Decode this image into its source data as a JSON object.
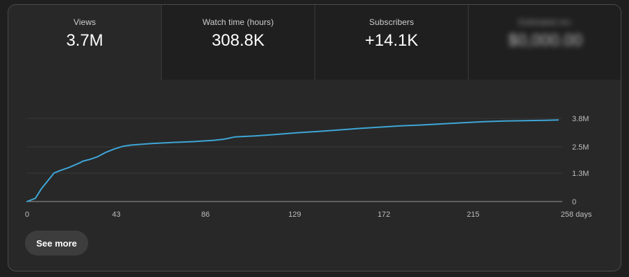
{
  "tabs": [
    {
      "label": "Views",
      "value": "3.7M"
    },
    {
      "label": "Watch time (hours)",
      "value": "308.8K"
    },
    {
      "label": "Subscribers",
      "value": "+14.1K"
    },
    {
      "label": "Estimated rev.",
      "value": "$0,000.00"
    }
  ],
  "see_more_label": "See more",
  "colors": {
    "line": "#3ea6d6",
    "grid": "#3a3a3a",
    "baseline": "#9a9a9a"
  },
  "chart_data": {
    "type": "line",
    "title": "",
    "xlabel": "",
    "ylabel": "",
    "x_ticks": [
      0,
      43,
      86,
      129,
      172,
      215,
      258
    ],
    "x_tick_labels": [
      "0",
      "43",
      "86",
      "129",
      "172",
      "215",
      "258 days"
    ],
    "y_ticks": [
      0,
      1.3,
      2.5,
      3.8
    ],
    "y_tick_labels": [
      "0",
      "1.3M",
      "2.5M",
      "3.8M"
    ],
    "xlim": [
      0,
      258
    ],
    "ylim": [
      0,
      3.8
    ],
    "series": [
      {
        "name": "Views",
        "x": [
          0,
          4,
          7,
          10,
          13,
          16,
          20,
          25,
          27,
          30,
          34,
          38,
          42,
          46,
          50,
          60,
          70,
          80,
          90,
          95,
          100,
          110,
          120,
          130,
          140,
          150,
          160,
          170,
          180,
          190,
          200,
          210,
          220,
          230,
          240,
          250,
          256
        ],
        "values": [
          0,
          0.15,
          0.6,
          0.95,
          1.3,
          1.42,
          1.55,
          1.75,
          1.85,
          1.92,
          2.05,
          2.25,
          2.4,
          2.52,
          2.58,
          2.65,
          2.7,
          2.74,
          2.8,
          2.85,
          2.95,
          3.0,
          3.07,
          3.14,
          3.2,
          3.27,
          3.34,
          3.4,
          3.46,
          3.5,
          3.55,
          3.6,
          3.65,
          3.68,
          3.7,
          3.71,
          3.73
        ]
      }
    ]
  }
}
